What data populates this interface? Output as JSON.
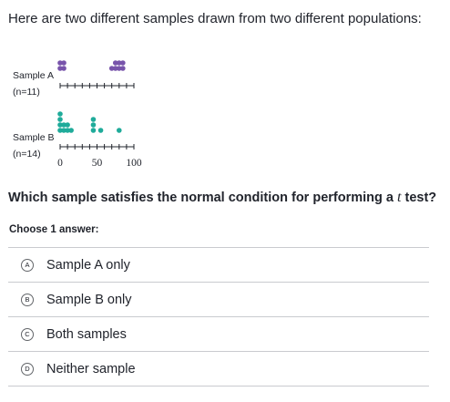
{
  "intro_text": "Here are two different samples drawn from two different populations:",
  "plot": {
    "sample_a": {
      "label": "Sample A",
      "n_label": "(n=11)",
      "color": "#7854ab",
      "values": [
        0,
        0,
        5,
        5,
        70,
        75,
        75,
        80,
        80,
        85,
        85
      ]
    },
    "sample_b": {
      "label": "Sample B",
      "n_label": "(n=14)",
      "color": "#1fab9a",
      "values": [
        0,
        0,
        0,
        0,
        5,
        5,
        10,
        10,
        15,
        45,
        45,
        45,
        55,
        80
      ]
    },
    "axis": {
      "min": 0,
      "max": 100,
      "tick_step": 10,
      "tick_labels": [
        "0",
        "50",
        "100"
      ]
    }
  },
  "question": {
    "text_before": "Which sample satisfies the normal condition for performing a ",
    "variable": "t",
    "text_after": " test?"
  },
  "instruction": "Choose 1 answer:",
  "choices": [
    {
      "letter": "A",
      "text": "Sample A only"
    },
    {
      "letter": "B",
      "text": "Sample B only"
    },
    {
      "letter": "C",
      "text": "Both samples"
    },
    {
      "letter": "D",
      "text": "Neither sample"
    }
  ]
}
